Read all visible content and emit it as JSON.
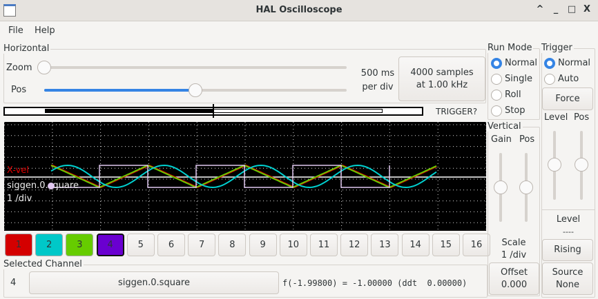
{
  "window": {
    "title": "HAL Oscilloscope"
  },
  "menu": [
    "File",
    "Help"
  ],
  "horizontal": {
    "label": "Horizontal",
    "zoom_label": "Zoom",
    "pos_label": "Pos",
    "zoom_value": 0,
    "pos_value": 0.5,
    "time_per_div": "500 ms",
    "per_div": "per div",
    "samples": "4000 samples",
    "rate": "at 1.00 kHz",
    "trigger_status": "TRIGGER?"
  },
  "scope": {
    "labels": {
      "channel_name": "X-vel",
      "selected_name": "siggen.0.square",
      "scale": "1 /div"
    },
    "trace_colors": {
      "ch1": "#e00000",
      "ch2": "#00d0d0",
      "ch3": "#66cc00",
      "ch4": "#e0c8f0"
    }
  },
  "channels": [
    {
      "label": "1",
      "color": "#d40000"
    },
    {
      "label": "2",
      "color": "#00c8c8"
    },
    {
      "label": "3",
      "color": "#66cc00"
    },
    {
      "label": "4",
      "color": "#6a00d0",
      "selected": true
    },
    {
      "label": "5"
    },
    {
      "label": "6"
    },
    {
      "label": "7"
    },
    {
      "label": "8"
    },
    {
      "label": "9"
    },
    {
      "label": "10"
    },
    {
      "label": "11"
    },
    {
      "label": "12"
    },
    {
      "label": "13"
    },
    {
      "label": "14"
    },
    {
      "label": "15"
    },
    {
      "label": "16"
    }
  ],
  "selected": {
    "label": "Selected Channel",
    "number": "4",
    "source": "siggen.0.square",
    "readout": "f(-1.99800) = -1.00000 (ddt  0.00000)"
  },
  "run_mode": {
    "label": "Run Mode",
    "options": [
      "Normal",
      "Single",
      "Roll",
      "Stop"
    ],
    "selected": "Normal"
  },
  "vertical": {
    "label": "Vertical",
    "gain": "Gain",
    "pos": "Pos",
    "scale_label": "Scale",
    "scale_value": "1 /div",
    "offset_label": "Offset",
    "offset_value": "0.000"
  },
  "trigger": {
    "label": "Trigger",
    "options": [
      "Normal",
      "Auto"
    ],
    "selected": "Normal",
    "force": "Force",
    "level": "Level",
    "pos": "Pos",
    "level_label": "Level",
    "level_value": "----",
    "edge": "Rising",
    "source_label": "Source",
    "source_value": "None"
  }
}
